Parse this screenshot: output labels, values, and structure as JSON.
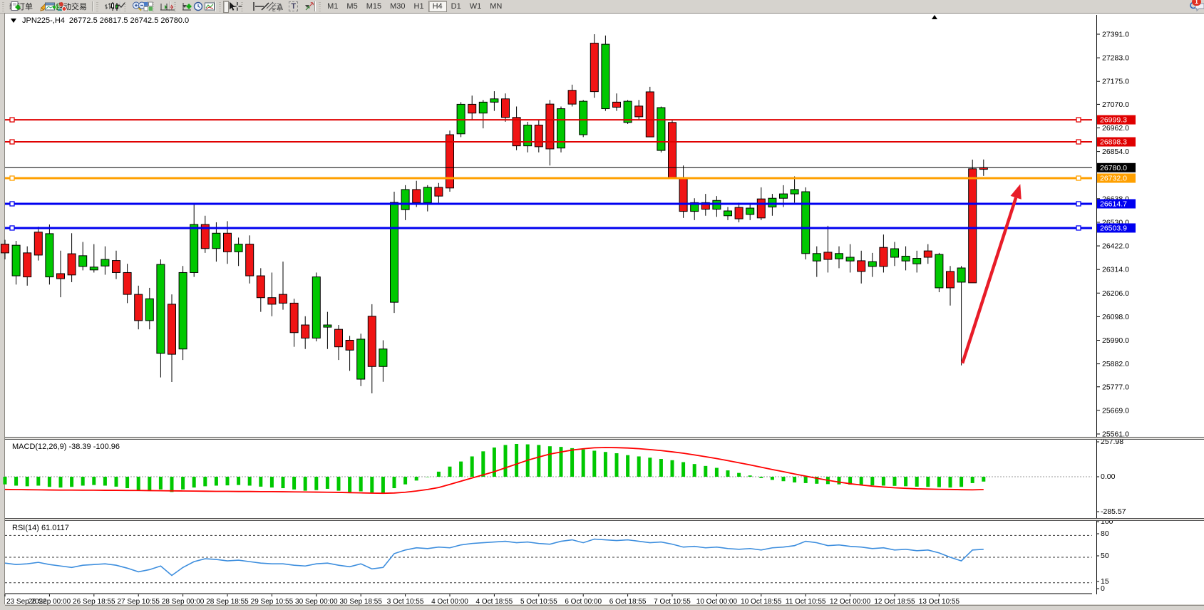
{
  "toolbar": {
    "new_order_label": "新订单",
    "auto_trading_label": "自动交易",
    "timeframes": [
      "M1",
      "M5",
      "M15",
      "M30",
      "H1",
      "H4",
      "D1",
      "W1",
      "MN"
    ],
    "active_timeframe": "H4",
    "notification_count": "1",
    "glyphs": {
      "text": "A",
      "label": "T",
      "channel": "E",
      "fibo": "F"
    }
  },
  "chart_header": {
    "symbol_tf": "JPN225-,H4",
    "ohlc": "26772.5 26817.5 26742.5 26780.0"
  },
  "indicator_labels": {
    "macd": "MACD(12,26,9) -38.39 -100.96",
    "rsi": "RSI(14) 61.0117"
  },
  "chart_data": {
    "type": "candlestick",
    "symbol": "JPN225-",
    "timeframe": "H4",
    "last_ohlc": {
      "open": 26772.5,
      "high": 26817.5,
      "low": 26742.5,
      "close": 26780.0
    },
    "price_axis": {
      "top": 27391.0,
      "bottom": 25561.0,
      "ticks": [
        "27391.0",
        "27283.0",
        "27175.0",
        "27070.0",
        "26962.0",
        "26854.0",
        "26638.0",
        "26530.0",
        "26422.0",
        "26314.0",
        "26206.0",
        "26098.0",
        "25990.0",
        "25882.0",
        "25777.0",
        "25669.0",
        "25561.0"
      ]
    },
    "time_labels": [
      "23 Sep 2022",
      "26 Sep 00:00",
      "26 Sep 18:55",
      "27 Sep 10:55",
      "28 Sep 00:00",
      "28 Sep 18:55",
      "29 Sep 10:55",
      "30 Sep 00:00",
      "30 Sep 18:55",
      "3 Oct 10:55",
      "4 Oct 00:00",
      "4 Oct 18:55",
      "5 Oct 10:55",
      "6 Oct 00:00",
      "6 Oct 18:55",
      "7 Oct 10:55",
      "10 Oct 00:00",
      "10 Oct 18:55",
      "11 Oct 10:55",
      "12 Oct 00:00",
      "12 Oct 18:55",
      "13 Oct 10:55"
    ],
    "candles": [
      [
        26430,
        26450,
        26360,
        26390
      ],
      [
        26285,
        26445,
        26245,
        26425
      ],
      [
        26390,
        26420,
        26240,
        26280
      ],
      [
        26485,
        26510,
        26355,
        26380
      ],
      [
        26280,
        26520,
        26245,
        26478
      ],
      [
        26295,
        26400,
        26187,
        26272
      ],
      [
        26386,
        26480,
        26256,
        26289
      ],
      [
        26328,
        26440,
        26310,
        26377
      ],
      [
        26312,
        26430,
        26300,
        26325
      ],
      [
        26330,
        26420,
        26290,
        26360
      ],
      [
        26355,
        26400,
        26270,
        26300
      ],
      [
        26300,
        26340,
        26160,
        26200
      ],
      [
        26200,
        26240,
        26040,
        26080
      ],
      [
        26080,
        26230,
        26040,
        26180
      ],
      [
        25930,
        26360,
        25820,
        26337
      ],
      [
        26155,
        26200,
        25799,
        25926
      ],
      [
        25950,
        26330,
        25900,
        26300
      ],
      [
        26300,
        26615,
        26280,
        26520
      ],
      [
        26520,
        26560,
        26390,
        26410
      ],
      [
        26410,
        26530,
        26350,
        26480
      ],
      [
        26480,
        26535,
        26340,
        26395
      ],
      [
        26395,
        26460,
        26330,
        26430
      ],
      [
        26430,
        26470,
        26250,
        26285
      ],
      [
        26285,
        26320,
        26120,
        26185
      ],
      [
        26185,
        26300,
        26100,
        26155
      ],
      [
        26200,
        26350,
        26130,
        26160
      ],
      [
        26160,
        26180,
        25960,
        26025
      ],
      [
        26060,
        26100,
        25950,
        26000
      ],
      [
        26000,
        26300,
        25985,
        26280
      ],
      [
        26050,
        26120,
        25950,
        26060
      ],
      [
        26040,
        26060,
        25900,
        25960
      ],
      [
        25990,
        26010,
        25850,
        25945
      ],
      [
        25812,
        26020,
        25780,
        25995
      ],
      [
        26100,
        26155,
        25747,
        25870
      ],
      [
        25870,
        25990,
        25800,
        25950
      ],
      [
        26164,
        26670,
        26115,
        26621
      ],
      [
        26588,
        26700,
        26540,
        26680
      ],
      [
        26680,
        26720,
        26600,
        26620
      ],
      [
        26620,
        26700,
        26580,
        26690
      ],
      [
        26690,
        26710,
        26610,
        26650
      ],
      [
        26931,
        26950,
        26670,
        26687
      ],
      [
        26935,
        27080,
        26920,
        27070
      ],
      [
        27070,
        27110,
        27000,
        27030
      ],
      [
        27030,
        27090,
        26960,
        27080
      ],
      [
        27080,
        27130,
        27040,
        27095
      ],
      [
        27095,
        27120,
        26990,
        27010
      ],
      [
        27010,
        27060,
        26860,
        26880
      ],
      [
        26880,
        26990,
        26850,
        26975
      ],
      [
        26975,
        27000,
        26850,
        26876
      ],
      [
        27071,
        27090,
        26790,
        26866
      ],
      [
        26870,
        27060,
        26850,
        27050
      ],
      [
        27134,
        27160,
        27060,
        27071
      ],
      [
        26931,
        27090,
        26920,
        27084
      ],
      [
        27350,
        27391,
        27100,
        27128
      ],
      [
        27050,
        27385,
        27040,
        27345
      ],
      [
        27080,
        27120,
        27040,
        27057
      ],
      [
        26987,
        27090,
        26980,
        27084
      ],
      [
        27062,
        27090,
        27000,
        27013
      ],
      [
        27127,
        27150,
        26920,
        26921
      ],
      [
        26859,
        27060,
        26850,
        27055
      ],
      [
        26987,
        27000,
        26730,
        26735
      ],
      [
        26735,
        26790,
        26550,
        26580
      ],
      [
        26580,
        26640,
        26540,
        26620
      ],
      [
        26620,
        26660,
        26560,
        26590
      ],
      [
        26590,
        26650,
        26555,
        26630
      ],
      [
        26560,
        26600,
        26540,
        26582
      ],
      [
        26598,
        26620,
        26530,
        26546
      ],
      [
        26566,
        26610,
        26540,
        26595
      ],
      [
        26637,
        26690,
        26540,
        26550
      ],
      [
        26600,
        26660,
        26560,
        26640
      ],
      [
        26640,
        26700,
        26600,
        26660
      ],
      [
        26660,
        26740,
        26620,
        26680
      ],
      [
        26387,
        26690,
        26360,
        26670
      ],
      [
        26353,
        26420,
        26280,
        26387
      ],
      [
        26393,
        26514,
        26300,
        26360
      ],
      [
        26363,
        26420,
        26320,
        26387
      ],
      [
        26353,
        26430,
        26300,
        26370
      ],
      [
        26354,
        26400,
        26250,
        26305
      ],
      [
        26328,
        26390,
        26280,
        26350
      ],
      [
        26415,
        26474,
        26300,
        26328
      ],
      [
        26370,
        26440,
        26330,
        26409
      ],
      [
        26353,
        26420,
        26310,
        26375
      ],
      [
        26340,
        26400,
        26300,
        26365
      ],
      [
        26399,
        26430,
        26340,
        26370
      ],
      [
        26230,
        26390,
        26210,
        26383
      ],
      [
        26305,
        26330,
        26149,
        26230
      ],
      [
        26256,
        26330,
        25875,
        26321
      ],
      [
        26775,
        26817,
        26253,
        26253
      ],
      [
        26772.5,
        26817.5,
        26742.5,
        26780.0
      ]
    ],
    "candle_color_overrides": {
      "88": "bear"
    },
    "hlines": [
      {
        "price": 26999.3,
        "label": "26999.3",
        "color": "#e00000",
        "width": 2,
        "handles": true
      },
      {
        "price": 26898.3,
        "label": "26898.3",
        "color": "#e00000",
        "width": 2,
        "handles": true
      },
      {
        "price": 26780.0,
        "label": "26780.0",
        "color": "#000000",
        "width": 1,
        "handles": false
      },
      {
        "price": 26732.0,
        "label": "26732.0",
        "color": "#ffa000",
        "width": 3,
        "handles": true
      },
      {
        "price": 26614.7,
        "label": "26614.7",
        "color": "#0000f0",
        "width": 3,
        "handles": true
      },
      {
        "price": 26503.9,
        "label": "26503.9",
        "color": "#0000f0",
        "width": 3,
        "handles": true
      }
    ],
    "arrow": {
      "from_index": 86.1,
      "from_price": 25885,
      "to_index": 91.3,
      "to_price": 26705
    },
    "macd": {
      "axis_labels": [
        "257.98",
        "0.00",
        "-285.57"
      ],
      "axis_max": 257.98,
      "hist": [
        -60,
        -70,
        -75,
        -70,
        -80,
        -85,
        -80,
        -70,
        -65,
        -70,
        -78,
        -90,
        -105,
        -110,
        -100,
        -120,
        -100,
        -85,
        -75,
        -70,
        -68,
        -65,
        -70,
        -78,
        -85,
        -90,
        -100,
        -110,
        -105,
        -95,
        -110,
        -120,
        -115,
        -125,
        -130,
        -90,
        -60,
        -30,
        0,
        40,
        80,
        120,
        160,
        200,
        230,
        250,
        258,
        255,
        250,
        240,
        235,
        225,
        215,
        205,
        195,
        185,
        170,
        160,
        150,
        140,
        130,
        115,
        100,
        85,
        70,
        50,
        30,
        10,
        -10,
        -25,
        -35,
        -45,
        -50,
        -55,
        -58,
        -60,
        -62,
        -65,
        -68,
        -70,
        -72,
        -75,
        -78,
        -80,
        -82,
        -85,
        -80,
        -50,
        -38
      ],
      "signal": [
        -100,
        -101,
        -102,
        -103,
        -104,
        -105,
        -105,
        -106,
        -106,
        -107,
        -107,
        -108,
        -108,
        -109,
        -110,
        -111,
        -112,
        -113,
        -114,
        -115,
        -115,
        -116,
        -116,
        -117,
        -117,
        -118,
        -119,
        -120,
        -121,
        -122,
        -123,
        -125,
        -127,
        -129,
        -130,
        -128,
        -122,
        -112,
        -100,
        -85,
        -60,
        -35,
        -10,
        15,
        40,
        70,
        100,
        130,
        155,
        178,
        195,
        210,
        220,
        228,
        230,
        229,
        226,
        221,
        214,
        206,
        196,
        185,
        172,
        158,
        143,
        127,
        110,
        93,
        75,
        57,
        40,
        22,
        5,
        -12,
        -28,
        -42,
        -55,
        -65,
        -74,
        -81,
        -87,
        -91,
        -95,
        -97,
        -99,
        -100,
        -102,
        -103,
        -101
      ]
    },
    "rsi": {
      "axis_labels": [
        "100",
        "80",
        "50",
        "15",
        "0"
      ],
      "levels": [
        80,
        50,
        15
      ],
      "values": [
        42,
        40,
        41,
        43,
        40,
        38,
        36,
        39,
        40,
        41,
        39,
        35,
        30,
        33,
        38,
        25,
        36,
        44,
        48,
        47,
        45,
        46,
        44,
        42,
        41,
        41,
        39,
        38,
        41,
        42,
        39,
        37,
        41,
        34,
        36,
        55,
        60,
        63,
        62,
        64,
        63,
        67,
        69,
        70,
        71,
        72,
        70,
        71,
        69,
        68,
        72,
        74,
        70,
        75,
        74,
        73,
        74,
        72,
        70,
        71,
        68,
        64,
        65,
        63,
        64,
        62,
        61,
        62,
        60,
        63,
        64,
        66,
        72,
        70,
        66,
        67,
        65,
        64,
        62,
        63,
        60,
        61,
        59,
        60,
        56,
        50,
        45,
        60,
        61
      ]
    },
    "colors": {
      "bull": "#00c800",
      "bear": "#f01414",
      "candle_border": "#000000",
      "macd_hist": "#00c800",
      "macd_signal": "#ff0000",
      "rsi_line": "#3d8ede",
      "arrow": "#e81c28"
    }
  }
}
